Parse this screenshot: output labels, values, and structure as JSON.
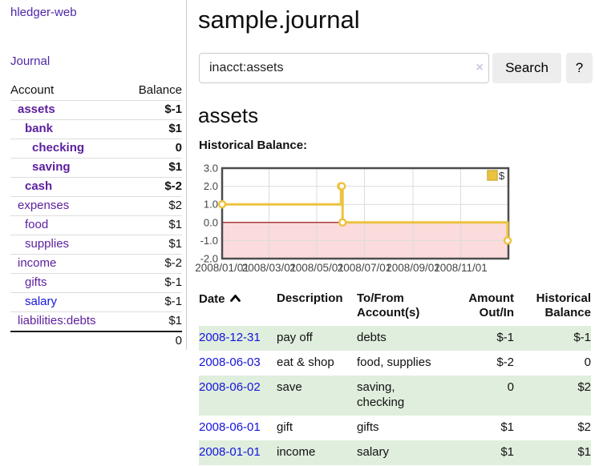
{
  "app": {
    "brand": "hledger-web",
    "nav_journal": "Journal"
  },
  "sidebar": {
    "headers": {
      "account": "Account",
      "balance": "Balance"
    },
    "accounts": [
      {
        "name": "assets",
        "depth": 1,
        "bold": true,
        "balance": "$-1",
        "neg": "strong",
        "link": "purple"
      },
      {
        "name": "bank",
        "depth": 2,
        "bold": true,
        "balance": "$1",
        "neg": "none",
        "link": "purple"
      },
      {
        "name": "checking",
        "depth": 3,
        "bold": true,
        "balance": "0",
        "neg": "none",
        "link": "purple"
      },
      {
        "name": "saving",
        "depth": 3,
        "bold": true,
        "balance": "$1",
        "neg": "none",
        "link": "purple"
      },
      {
        "name": "cash",
        "depth": 2,
        "bold": true,
        "balance": "$-2",
        "neg": "strong",
        "link": "purple"
      },
      {
        "name": "expenses",
        "depth": 1,
        "bold": false,
        "balance": "$2",
        "neg": "none",
        "link": "purple"
      },
      {
        "name": "food",
        "depth": 2,
        "bold": false,
        "balance": "$1",
        "neg": "none",
        "link": "purple"
      },
      {
        "name": "supplies",
        "depth": 2,
        "bold": false,
        "balance": "$1",
        "neg": "none",
        "link": "purple"
      },
      {
        "name": "income",
        "depth": 1,
        "bold": false,
        "balance": "$-2",
        "neg": "soft",
        "link": "purple"
      },
      {
        "name": "gifts",
        "depth": 2,
        "bold": false,
        "balance": "$-1",
        "neg": "soft",
        "link": "purple"
      },
      {
        "name": "salary",
        "depth": 2,
        "bold": false,
        "balance": "$-1",
        "neg": "soft",
        "link": "blue"
      },
      {
        "name": "liabilities:debts",
        "depth": 1,
        "bold": false,
        "balance": "$1",
        "neg": "none",
        "link": "purple"
      }
    ],
    "total": "0"
  },
  "header": {
    "title": "sample.journal"
  },
  "search": {
    "value": "inacct:assets",
    "clear_icon": "×",
    "button_label": "Search",
    "help_label": "?"
  },
  "account_page": {
    "heading": "assets",
    "chart_label": "Historical Balance:"
  },
  "chart_data": {
    "type": "line",
    "style": "step",
    "title": "Historical Balance",
    "series": [
      {
        "name": "$",
        "color": "#edc240",
        "points": [
          [
            "2008-01-01",
            1
          ],
          [
            "2008-06-01",
            2
          ],
          [
            "2008-06-02",
            2
          ],
          [
            "2008-06-03",
            0
          ],
          [
            "2008-12-31",
            -1
          ]
        ]
      }
    ],
    "xlim": [
      "2008-01-01",
      "2009-01-01"
    ],
    "ylim": [
      -2,
      3
    ],
    "x_ticks": [
      "2008/01/01",
      "2008/03/01",
      "2008/05/01",
      "2008/07/01",
      "2008/09/01",
      "2008/11/01"
    ],
    "y_ticks": [
      "3.0",
      "2.0",
      "1.0",
      "0.0",
      "-1.0",
      "-2.0"
    ],
    "legend": {
      "label": "$",
      "position": "top-right"
    },
    "grid": true,
    "negative_region_fill": "#fbdbdb",
    "zero_line_color": "#8b0000",
    "grid_color": "#dcdcdc",
    "border_color": "#4d4d4d"
  },
  "transactions": {
    "headers": {
      "date": "Date",
      "description": "Description",
      "accounts": "To/From Account(s)",
      "amount": "Amount Out/In",
      "historical": "Historical Balance"
    },
    "sort": {
      "column": "date",
      "direction": "ascending",
      "icon": "chevron-up"
    },
    "rows": [
      {
        "date": "2008-12-31",
        "description": "pay off",
        "accounts": "debts",
        "amount": "$-1",
        "amount_neg": true,
        "historical": "$-1",
        "historical_neg": true,
        "shaded": true
      },
      {
        "date": "2008-06-03",
        "description": "eat & shop",
        "accounts": "food, supplies",
        "amount": "$-2",
        "amount_neg": true,
        "historical": "0",
        "historical_neg": false,
        "shaded": false
      },
      {
        "date": "2008-06-02",
        "description": "save",
        "accounts": "saving, checking",
        "amount": "0",
        "amount_neg": false,
        "historical": "$2",
        "historical_neg": false,
        "shaded": true
      },
      {
        "date": "2008-06-01",
        "description": "gift",
        "accounts": "gifts",
        "amount": "$1",
        "amount_neg": false,
        "historical": "$2",
        "historical_neg": false,
        "shaded": false
      },
      {
        "date": "2008-01-01",
        "description": "income",
        "accounts": "salary",
        "amount": "$1",
        "amount_neg": false,
        "historical": "$1",
        "historical_neg": false,
        "shaded": true
      }
    ]
  },
  "colors": {
    "link_purple": "#5c1e9e",
    "nav_purple": "#4d27a8",
    "link_blue": "#1414dd",
    "negative_strong": "#8f1212",
    "negative_soft": "#c46a6a",
    "row_shade_green": "#e0eedd",
    "accent_yellow": "#edc240",
    "button_bg": "#ededed",
    "divider_gray": "#cccccc"
  }
}
